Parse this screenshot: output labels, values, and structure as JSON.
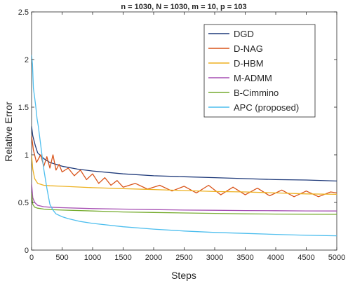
{
  "chart_data": {
    "type": "line",
    "title": "n = 1030, N = 1030, m = 10, p = 103",
    "xlabel": "Steps",
    "ylabel": "Relative Error",
    "xlim": [
      0,
      5000
    ],
    "ylim": [
      0,
      2.5
    ],
    "xticks": [
      0,
      500,
      1000,
      1500,
      2000,
      2500,
      3000,
      3500,
      4000,
      4500,
      5000
    ],
    "yticks": [
      0,
      0.5,
      1,
      1.5,
      2,
      2.5
    ],
    "xtick_labels": [
      "0",
      "500",
      "1000",
      "1500",
      "2000",
      "2500",
      "3000",
      "3500",
      "4000",
      "4500",
      "5000"
    ],
    "ytick_labels": [
      "0",
      "0.5",
      "1",
      "1.5",
      "2",
      "2.5"
    ],
    "grid": false,
    "legend_position": "top-right",
    "series": [
      {
        "name": "DGD",
        "color": "#1f3a7a",
        "x": [
          0,
          20,
          60,
          100,
          200,
          300,
          500,
          750,
          1000,
          1500,
          2000,
          2500,
          3000,
          3500,
          4000,
          4500,
          5000
        ],
        "y": [
          1.3,
          1.2,
          1.1,
          1.02,
          0.96,
          0.92,
          0.88,
          0.85,
          0.83,
          0.8,
          0.78,
          0.77,
          0.76,
          0.75,
          0.74,
          0.735,
          0.725
        ]
      },
      {
        "name": "D-NAG",
        "color": "#d95319",
        "x": [
          0,
          30,
          80,
          150,
          200,
          250,
          300,
          350,
          400,
          450,
          500,
          600,
          700,
          800,
          900,
          1000,
          1100,
          1200,
          1300,
          1400,
          1500,
          1700,
          1900,
          2100,
          2300,
          2500,
          2700,
          2900,
          3100,
          3300,
          3500,
          3700,
          3900,
          4100,
          4300,
          4500,
          4700,
          4900,
          5000
        ],
        "y": [
          1.2,
          1.05,
          0.92,
          1.0,
          0.88,
          0.98,
          0.86,
          1.0,
          0.84,
          0.9,
          0.82,
          0.86,
          0.78,
          0.84,
          0.74,
          0.8,
          0.7,
          0.76,
          0.68,
          0.73,
          0.66,
          0.7,
          0.64,
          0.68,
          0.62,
          0.67,
          0.6,
          0.68,
          0.58,
          0.66,
          0.58,
          0.65,
          0.57,
          0.63,
          0.56,
          0.62,
          0.56,
          0.61,
          0.6
        ]
      },
      {
        "name": "D-HBM",
        "color": "#edb120",
        "x": [
          0,
          20,
          50,
          100,
          200,
          300,
          500,
          1000,
          1500,
          2000,
          2500,
          3000,
          3500,
          4000,
          4500,
          5000
        ],
        "y": [
          1.0,
          0.85,
          0.75,
          0.7,
          0.68,
          0.675,
          0.67,
          0.655,
          0.645,
          0.635,
          0.625,
          0.615,
          0.61,
          0.6,
          0.59,
          0.585
        ]
      },
      {
        "name": "M-ADMM",
        "color": "#a64fb3",
        "x": [
          0,
          20,
          50,
          100,
          200,
          300,
          500,
          1000,
          1500,
          2000,
          2500,
          3000,
          3500,
          4000,
          4500,
          5000
        ],
        "y": [
          0.7,
          0.55,
          0.5,
          0.47,
          0.455,
          0.45,
          0.445,
          0.435,
          0.43,
          0.425,
          0.42,
          0.418,
          0.415,
          0.413,
          0.411,
          0.41
        ]
      },
      {
        "name": "B-Cimmino",
        "color": "#77ac30",
        "x": [
          0,
          20,
          50,
          100,
          200,
          300,
          500,
          1000,
          1500,
          2000,
          2500,
          3000,
          3500,
          4000,
          4500,
          5000
        ],
        "y": [
          0.6,
          0.48,
          0.45,
          0.44,
          0.43,
          0.425,
          0.42,
          0.41,
          0.4,
          0.395,
          0.39,
          0.385,
          0.38,
          0.378,
          0.376,
          0.375
        ]
      },
      {
        "name": "APC (proposed)",
        "color": "#4dbeee",
        "x": [
          0,
          15,
          30,
          50,
          70,
          90,
          110,
          140,
          170,
          200,
          250,
          300,
          350,
          400,
          500,
          600,
          800,
          1000,
          1500,
          2000,
          2500,
          3000,
          3500,
          4000,
          4500,
          5000
        ],
        "y": [
          2.05,
          1.95,
          1.7,
          1.6,
          1.5,
          1.38,
          1.3,
          1.15,
          1.0,
          0.85,
          0.65,
          0.48,
          0.42,
          0.38,
          0.35,
          0.33,
          0.3,
          0.28,
          0.245,
          0.22,
          0.2,
          0.185,
          0.175,
          0.165,
          0.155,
          0.15
        ]
      }
    ]
  }
}
